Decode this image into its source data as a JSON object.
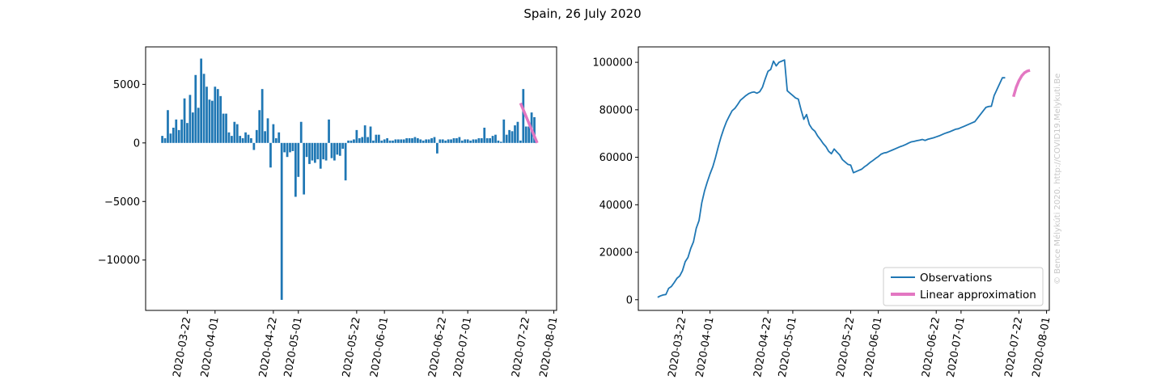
{
  "title": "Spain, 26 July 2020",
  "watermark": "© Bence Mélykúti 2020. http://COVID19.Melykuti.Be",
  "colors": {
    "observations": "#1f77b4",
    "approximation": "#e377c2",
    "frame": "#000000"
  },
  "chart_data": [
    {
      "type": "bar",
      "x_start": "2020-03-13",
      "x_range": [
        "2020-03-07",
        "2020-08-02"
      ],
      "ylim": [
        -14300,
        8200
      ],
      "grid": false,
      "xticks": [
        "2020-03-22",
        "2020-04-01",
        "2020-04-22",
        "2020-05-01",
        "2020-05-22",
        "2020-06-01",
        "2020-06-22",
        "2020-07-01",
        "2020-07-22",
        "2020-08-01"
      ],
      "yticks": [
        5000,
        0,
        -5000,
        -10000
      ],
      "ytick_labels": [
        "5000",
        "0",
        "−5000",
        "−10000"
      ],
      "values": [
        600,
        400,
        2800,
        800,
        1300,
        2000,
        1100,
        2000,
        3800,
        1700,
        4100,
        2600,
        5800,
        3000,
        7200,
        5900,
        4800,
        3700,
        3600,
        4800,
        4600,
        4000,
        2500,
        2500,
        900,
        600,
        1800,
        1600,
        600,
        400,
        900,
        700,
        400,
        -600,
        1100,
        2800,
        4600,
        1000,
        2100,
        -2100,
        1600,
        400,
        900,
        -13400,
        -800,
        -1200,
        -800,
        -700,
        -4600,
        -2900,
        1800,
        -4400,
        -1200,
        -1800,
        -1500,
        -1700,
        -1400,
        -2200,
        -1400,
        -1500,
        2000,
        -1300,
        -1500,
        -1000,
        -1100,
        -500,
        -3200,
        200,
        200,
        300,
        1100,
        400,
        500,
        1500,
        500,
        1400,
        200,
        700,
        700,
        200,
        300,
        400,
        200,
        200,
        300,
        300,
        300,
        300,
        400,
        400,
        400,
        500,
        400,
        300,
        200,
        300,
        300,
        400,
        500,
        -900,
        300,
        300,
        200,
        300,
        300,
        400,
        400,
        500,
        200,
        300,
        300,
        200,
        300,
        300,
        400,
        400,
        1300,
        400,
        400,
        600,
        700,
        200,
        100,
        2000,
        700,
        1100,
        1000,
        1500,
        1800,
        200,
        4600,
        1400,
        1400,
        2600,
        2200
      ],
      "approximation": {
        "x": [
          "2020-07-20",
          "2020-07-26"
        ],
        "y": [
          3400,
          0
        ]
      }
    },
    {
      "type": "line",
      "x_start": "2020-03-13",
      "x_range": [
        "2020-03-06",
        "2020-08-02"
      ],
      "ylim": [
        -4500,
        106500
      ],
      "grid": false,
      "xticks": [
        "2020-03-22",
        "2020-04-01",
        "2020-04-22",
        "2020-05-01",
        "2020-05-22",
        "2020-06-01",
        "2020-06-22",
        "2020-07-01",
        "2020-07-22",
        "2020-08-01"
      ],
      "yticks": [
        0,
        20000,
        40000,
        60000,
        80000,
        100000
      ],
      "ytick_labels": [
        "0",
        "20000",
        "40000",
        "60000",
        "80000",
        "100000"
      ],
      "series": [
        {
          "name": "Observations",
          "values": [
            1000,
            1600,
            2000,
            2200,
            4800,
            5600,
            7200,
            9000,
            10000,
            12200,
            16000,
            17800,
            21600,
            24400,
            30100,
            33300,
            40800,
            45800,
            49600,
            53000,
            56000,
            60000,
            64500,
            68600,
            72100,
            75100,
            77400,
            79600,
            80600,
            82200,
            84000,
            85000,
            86000,
            86800,
            87300,
            87500,
            87000,
            87600,
            89500,
            93000,
            96200,
            97000,
            100500,
            98500,
            100000,
            100500,
            101000,
            88000,
            87000,
            86000,
            85000,
            84500,
            80000,
            76000,
            78000,
            73800,
            72000,
            71000,
            69000,
            67500,
            65800,
            64500,
            62500,
            61500,
            63500,
            62200,
            61000,
            59000,
            58000,
            57000,
            56700,
            53500,
            54000,
            54500,
            55000,
            56000,
            56800,
            57800,
            58600,
            59500,
            60300,
            61300,
            61800,
            62000,
            62500,
            63000,
            63500,
            64000,
            64500,
            64900,
            65400,
            66000,
            66500,
            66700,
            67000,
            67200,
            67500,
            67100,
            67600,
            67900,
            68200,
            68600,
            69000,
            69500,
            70000,
            70400,
            70800,
            71300,
            71800,
            72000,
            72500,
            73000,
            73500,
            74000,
            74500,
            75000,
            76500,
            78000,
            79500,
            81000,
            81400,
            81500,
            86000,
            88500,
            91000,
            93500,
            93500
          ]
        },
        {
          "name": "Linear approximation",
          "x": [
            "2020-07-20",
            "2020-07-21",
            "2020-07-22",
            "2020-07-23",
            "2020-07-24",
            "2020-07-25",
            "2020-07-26"
          ],
          "values": [
            85500,
            89500,
            92300,
            94300,
            95600,
            96300,
            96600
          ]
        }
      ],
      "legend": {
        "position": "lower-right",
        "entries": [
          "Observations",
          "Linear approximation"
        ]
      }
    }
  ]
}
